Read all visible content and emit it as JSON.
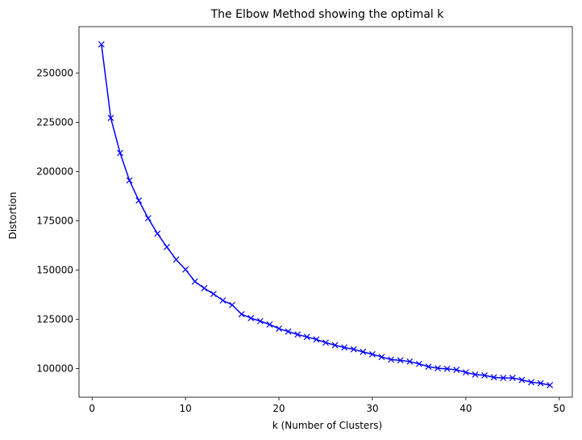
{
  "chart_data": {
    "type": "line",
    "title": "The Elbow Method showing the optimal k",
    "xlabel": "k (Number of Clusters)",
    "ylabel": "Distortion",
    "xlim": [
      -1.4,
      51.4
    ],
    "ylim": [
      85500,
      273500
    ],
    "xticks": [
      0,
      10,
      20,
      30,
      40,
      50
    ],
    "yticks": [
      100000,
      125000,
      150000,
      175000,
      200000,
      225000,
      250000
    ],
    "grid": false,
    "marker": "x",
    "series": [
      {
        "color": "#0000ff",
        "x": [
          1,
          2,
          3,
          4,
          5,
          6,
          7,
          8,
          9,
          10,
          11,
          12,
          13,
          14,
          15,
          16,
          17,
          18,
          19,
          20,
          21,
          22,
          23,
          24,
          25,
          26,
          27,
          28,
          29,
          30,
          31,
          32,
          33,
          34,
          35,
          36,
          37,
          38,
          39,
          40,
          41,
          42,
          43,
          44,
          45,
          46,
          47,
          48,
          49
        ],
        "y": [
          264500,
          227200,
          209400,
          195500,
          185300,
          176300,
          168500,
          161700,
          155300,
          150300,
          144200,
          140800,
          137900,
          134600,
          132300,
          127600,
          125600,
          124100,
          122400,
          120300,
          118800,
          117300,
          116100,
          114800,
          113200,
          111900,
          110700,
          109800,
          108500,
          107300,
          105900,
          104600,
          104200,
          103600,
          102400,
          101000,
          100200,
          99900,
          99400,
          98100,
          97000,
          96600,
          95600,
          95300,
          95300,
          94300,
          93100,
          92600,
          91600
        ]
      }
    ]
  }
}
